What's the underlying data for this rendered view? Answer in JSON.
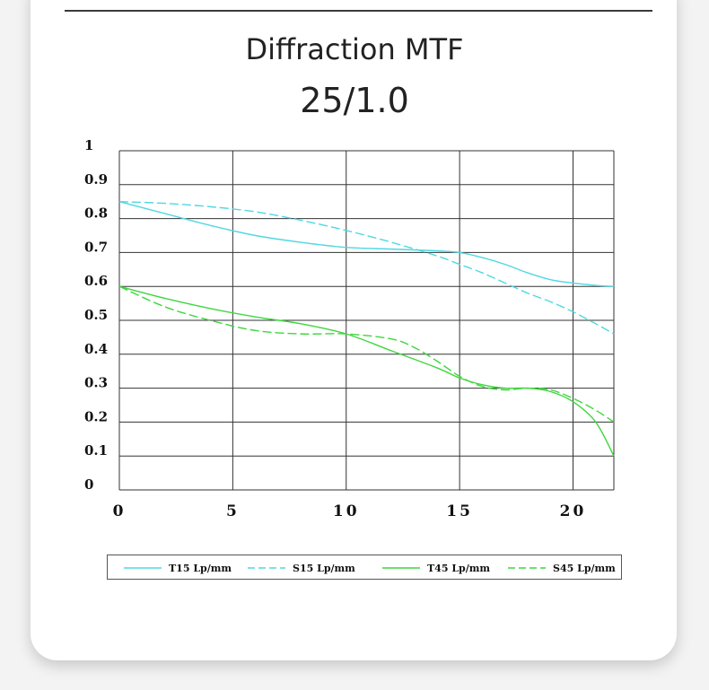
{
  "chart_data": {
    "type": "line",
    "title": "Diffraction MTF",
    "subtitle": "25/1.0",
    "xlim": [
      0,
      21.8
    ],
    "ylim": [
      0,
      1
    ],
    "x_ticks": [
      "0",
      "5",
      "10",
      "15",
      "20"
    ],
    "x_tick_values": [
      0,
      5,
      10,
      15,
      20
    ],
    "y_ticks": [
      "0",
      "0.1",
      "0.2",
      "0.3",
      "0.4",
      "0.5",
      "0.6",
      "0.7",
      "0.8",
      "0.9",
      "1"
    ],
    "y_tick_values": [
      0,
      0.1,
      0.2,
      0.3,
      0.4,
      0.5,
      0.6,
      0.7,
      0.8,
      0.9,
      1
    ],
    "x_gridlines": [
      0,
      5,
      10,
      15,
      20,
      21.8
    ],
    "grid": true,
    "legend_position": "bottom",
    "series": [
      {
        "name": "T15 Lp/mm",
        "color": "#4fd8e0",
        "dash": "solid",
        "x": [
          0,
          2,
          4,
          6,
          8,
          10,
          12,
          14,
          15,
          16,
          17,
          18,
          19,
          20,
          21,
          21.8
        ],
        "y": [
          0.85,
          0.815,
          0.78,
          0.75,
          0.73,
          0.715,
          0.71,
          0.705,
          0.7,
          0.685,
          0.665,
          0.64,
          0.62,
          0.61,
          0.603,
          0.6
        ]
      },
      {
        "name": "S15 Lp/mm",
        "color": "#4fd8e0",
        "dash": "dashed",
        "x": [
          0,
          2,
          4,
          6,
          8,
          10,
          12,
          14,
          15,
          16,
          17,
          18,
          19,
          20,
          21,
          21.8
        ],
        "y": [
          0.85,
          0.845,
          0.835,
          0.82,
          0.795,
          0.765,
          0.73,
          0.69,
          0.665,
          0.64,
          0.61,
          0.58,
          0.555,
          0.525,
          0.49,
          0.46
        ]
      },
      {
        "name": "T45 Lp/mm",
        "color": "#3fd63f",
        "dash": "solid",
        "x": [
          0,
          2,
          4,
          6,
          8,
          10,
          12,
          14,
          15,
          16,
          17,
          18,
          19,
          20,
          21,
          21.8
        ],
        "y": [
          0.6,
          0.565,
          0.535,
          0.51,
          0.49,
          0.46,
          0.41,
          0.36,
          0.33,
          0.31,
          0.3,
          0.3,
          0.29,
          0.26,
          0.2,
          0.1
        ]
      },
      {
        "name": "S45 Lp/mm",
        "color": "#3fd63f",
        "dash": "dashed",
        "x": [
          0,
          2,
          4,
          6,
          8,
          10,
          12,
          13,
          14,
          15,
          16,
          17,
          18,
          19,
          20,
          21,
          21.8
        ],
        "y": [
          0.6,
          0.54,
          0.5,
          0.47,
          0.46,
          0.46,
          0.445,
          0.42,
          0.38,
          0.335,
          0.305,
          0.295,
          0.3,
          0.295,
          0.27,
          0.235,
          0.2
        ]
      }
    ]
  }
}
